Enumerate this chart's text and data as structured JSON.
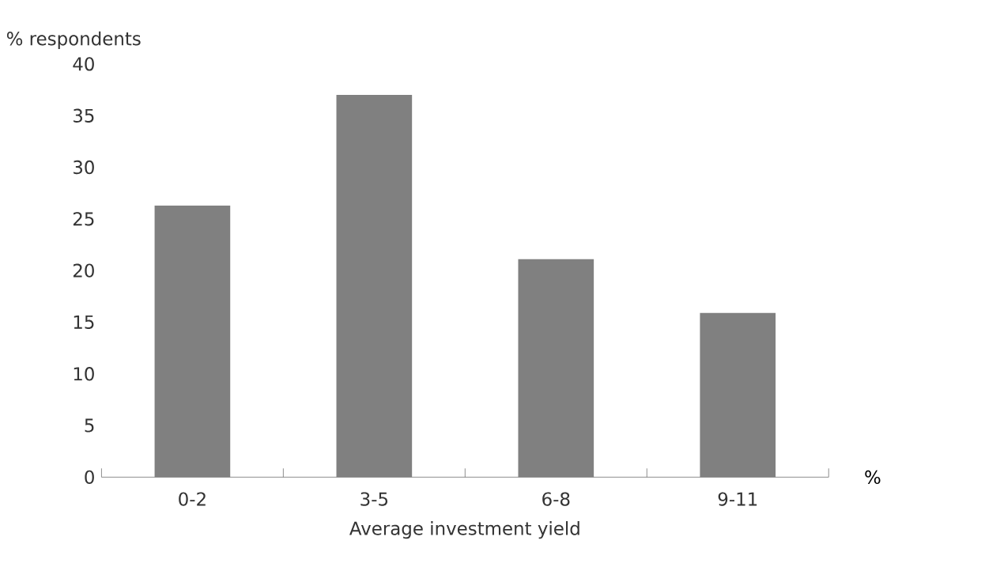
{
  "chart_data": {
    "type": "bar",
    "ylabel": "% respondents",
    "xlabel": "Average investment yield",
    "categories": [
      "0-2",
      "3-5",
      "6-8",
      "9-11"
    ],
    "values": [
      26.3,
      37.0,
      21.1,
      15.9
    ],
    "color": "#808080",
    "ylim": [
      0,
      40
    ],
    "yticks": [
      0,
      5,
      10,
      15,
      20,
      25,
      30,
      35,
      40
    ],
    "annotations": [
      "%"
    ]
  }
}
